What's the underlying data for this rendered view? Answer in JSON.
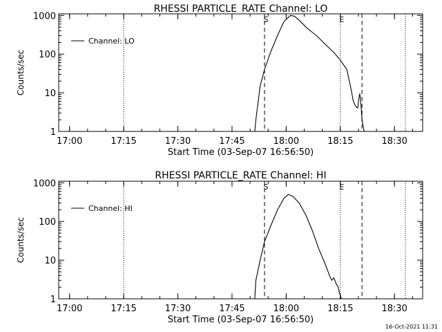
{
  "chart_data": [
    {
      "type": "line",
      "title": "RHESSI PARTICLE_RATE Channel: LO",
      "xlabel": "Start Time (03-Sep-07 16:56:50)",
      "ylabel": "Counts/sec",
      "yscale": "log",
      "xlim": [
        16.95,
        18.63
      ],
      "ylim": [
        1,
        1100
      ],
      "x_ticks": [
        "17:00",
        "17:15",
        "17:30",
        "17:45",
        "18:00",
        "18:15",
        "18:30"
      ],
      "y_ticks": [
        "1",
        "10",
        "100",
        "1000"
      ],
      "legend": "Channel: LO",
      "markers": {
        "dotted": [
          17.25,
          18.25,
          18.55
        ],
        "dashed": [
          17.9,
          18.35
        ],
        "labels": [
          {
            "text": "S",
            "x": 17.9
          },
          {
            "text": "E",
            "x": 18.25
          }
        ]
      },
      "series": [
        {
          "name": "Channel: LO",
          "x": [
            17.855,
            17.86,
            17.88,
            17.9,
            17.93,
            17.96,
            17.99,
            18.02,
            18.04,
            18.06,
            18.1,
            18.14,
            18.18,
            18.22,
            18.25,
            18.28,
            18.3,
            18.31,
            18.32,
            18.33,
            18.335,
            18.34,
            18.345,
            18.35,
            18.36
          ],
          "y": [
            1,
            2,
            15,
            40,
            120,
            300,
            700,
            1000,
            950,
            750,
            450,
            300,
            180,
            110,
            70,
            40,
            12,
            6,
            4.5,
            4,
            7,
            9.5,
            5,
            2,
            1
          ]
        }
      ]
    },
    {
      "type": "line",
      "title": "RHESSI PARTICLE_RATE Channel: HI",
      "xlabel": "Start Time (03-Sep-07 16:56:50)",
      "ylabel": "Counts/sec",
      "yscale": "log",
      "xlim": [
        16.95,
        18.63
      ],
      "ylim": [
        1,
        1100
      ],
      "x_ticks": [
        "17:00",
        "17:15",
        "17:30",
        "17:45",
        "18:00",
        "18:15",
        "18:30"
      ],
      "y_ticks": [
        "1",
        "10",
        "100",
        "1000"
      ],
      "legend": "Channel: HI",
      "markers": {
        "dotted": [
          17.25,
          18.25,
          18.55
        ],
        "dashed": [
          17.9,
          18.35
        ],
        "labels": [
          {
            "text": "S",
            "x": 17.9
          },
          {
            "text": "E",
            "x": 18.25
          }
        ]
      },
      "series": [
        {
          "name": "Channel: HI",
          "x": [
            17.855,
            17.86,
            17.88,
            17.9,
            17.93,
            17.96,
            17.99,
            18.01,
            18.03,
            18.06,
            18.09,
            18.12,
            18.15,
            18.18,
            18.2,
            18.21,
            18.22,
            18.23,
            18.24,
            18.245,
            18.25,
            18.255
          ],
          "y": [
            1,
            3,
            10,
            30,
            80,
            200,
            400,
            500,
            450,
            300,
            150,
            60,
            20,
            8,
            4,
            3,
            3.5,
            2.5,
            2,
            1.5,
            1.2,
            1
          ]
        }
      ]
    }
  ],
  "footer": {
    "timestamp": "16-Oct-2021 11:31"
  }
}
